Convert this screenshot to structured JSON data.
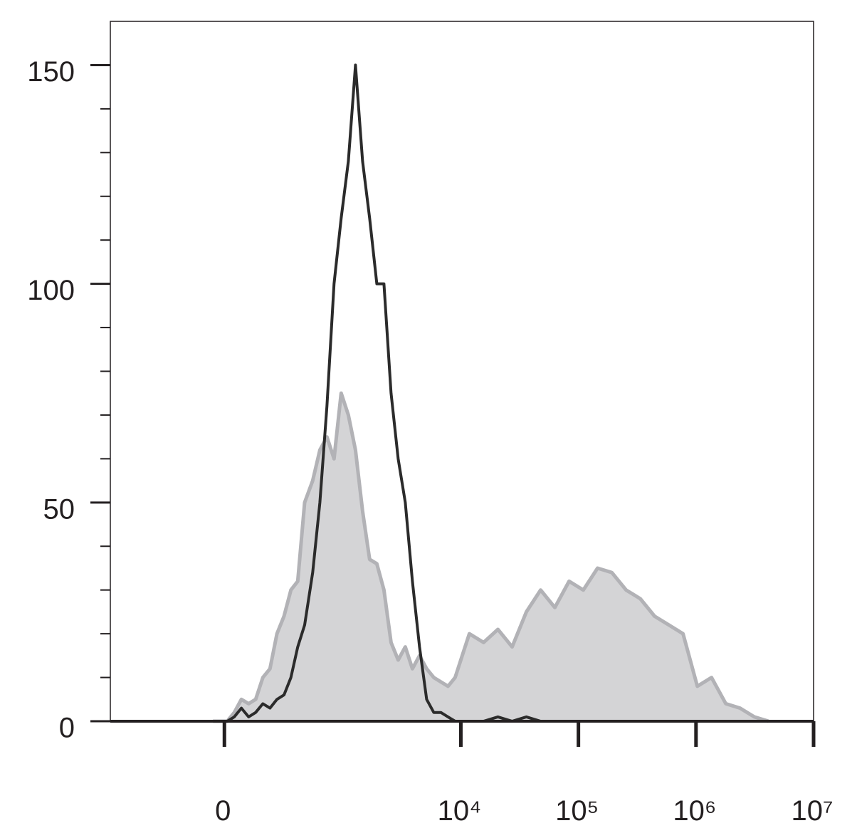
{
  "chart_data": {
    "type": "histogram-overlay",
    "x": [
      -44,
      -16,
      11,
      38,
      66,
      96,
      127,
      161,
      198,
      238,
      283,
      332,
      387,
      449,
      532,
      617,
      713,
      823,
      950,
      1096,
      1262,
      1453,
      1671,
      1925,
      2213,
      2547,
      2927,
      3368,
      3873,
      4450,
      5117,
      5881,
      6765,
      7777,
      8941,
      10277,
      11817,
      15620,
      20670,
      27300,
      36075,
      47700,
      63000,
      83300,
      110000,
      145500,
      192300,
      254300,
      336000,
      444000,
      587000,
      776000,
      1026000,
      1355000,
      1792000,
      2368000,
      3130000,
      4137000
    ],
    "series": [
      {
        "color": "#b2b2b6",
        "fill": "#d4d4d6",
        "values": [
          0,
          0,
          0,
          2,
          5,
          4,
          5,
          10,
          12,
          20,
          24,
          30,
          32,
          50,
          55,
          62,
          65,
          60,
          75,
          70,
          62,
          48,
          37,
          36,
          30,
          18,
          14,
          17,
          12,
          15,
          12,
          10,
          9,
          8,
          10,
          15,
          20,
          18,
          21,
          17,
          25,
          30,
          26,
          32,
          30,
          35,
          34,
          30,
          28,
          24,
          22,
          20,
          8,
          10,
          4,
          3,
          1,
          0
        ]
      },
      {
        "color": "#2b2b2b",
        "values": [
          0,
          0,
          0,
          1,
          3,
          1,
          2,
          4,
          3,
          5,
          6,
          10,
          17,
          22,
          34,
          50,
          72,
          100,
          115,
          128,
          150,
          128,
          115,
          100,
          100,
          75,
          60,
          50,
          32,
          17,
          5,
          2,
          2,
          1,
          0,
          0,
          0,
          0,
          1,
          0,
          1,
          0,
          0,
          0,
          0,
          0,
          0,
          0,
          0,
          0,
          0,
          0,
          0,
          0,
          0,
          0,
          0,
          0
        ]
      }
    ],
    "xscale": "biexponential",
    "xlim": [
      -900,
      10000000
    ],
    "xticks": [
      0,
      {
        "value": 10000,
        "label": "10⁴"
      },
      {
        "value": 100000,
        "label": "10⁵"
      },
      {
        "value": 1000000,
        "label": "10⁶"
      },
      {
        "value": 10000000,
        "label": "10⁷"
      }
    ],
    "ylim": [
      0,
      160
    ],
    "yticks": [
      0,
      50,
      100,
      150
    ],
    "yminorticks": [
      10,
      20,
      30,
      40,
      60,
      70,
      80,
      90,
      110,
      120,
      130,
      140
    ]
  }
}
